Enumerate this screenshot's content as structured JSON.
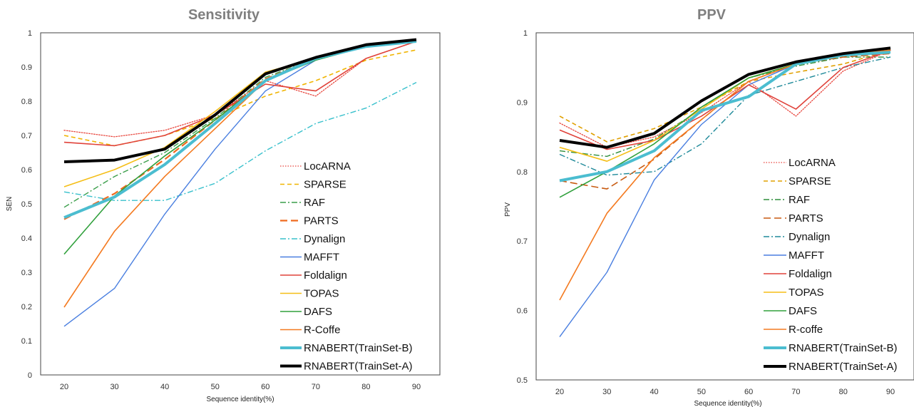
{
  "chart_data": [
    {
      "type": "line",
      "title": "Sensitivity",
      "xlabel": "Sequence identity(%)",
      "ylabel": "SEN",
      "x": [
        20,
        30,
        40,
        50,
        60,
        70,
        80,
        90
      ],
      "xticks": [
        "20",
        "30",
        "40",
        "50",
        "60",
        "70",
        "80",
        "90"
      ],
      "yticks": [
        "0",
        "0.1",
        "0.2",
        "0.3",
        "0.4",
        "0.5",
        "0.6",
        "0.7",
        "0.8",
        "0.9",
        "1"
      ],
      "ylim": [
        0,
        1
      ],
      "legend_position": "right",
      "series": [
        {
          "name": "LocARNA",
          "color": "#e8453c",
          "dash": "dotted",
          "width": 1.3,
          "values": [
            0.715,
            0.696,
            0.715,
            0.76,
            0.86,
            0.815,
            0.925,
            0.975
          ]
        },
        {
          "name": "SPARSE",
          "color": "#f0b400",
          "dash": "dashed",
          "width": 1.6,
          "values": [
            0.7,
            0.67,
            0.7,
            0.75,
            0.815,
            0.86,
            0.92,
            0.95
          ]
        },
        {
          "name": "RAF",
          "color": "#3a9e4a",
          "dash": "dashdot",
          "width": 1.4,
          "values": [
            0.49,
            0.58,
            0.65,
            0.75,
            0.87,
            0.925,
            0.96,
            0.975
          ]
        },
        {
          "name": "PARTS",
          "color": "#ef6a1f",
          "dash": "longdash",
          "width": 2.2,
          "values": [
            0.455,
            0.53,
            0.63,
            0.745,
            0.865,
            0.925,
            0.96,
            0.975
          ]
        },
        {
          "name": "Dynalign",
          "color": "#38c0cc",
          "dash": "dashdot",
          "width": 1.4,
          "values": [
            0.535,
            0.51,
            0.51,
            0.56,
            0.655,
            0.735,
            0.78,
            0.855
          ]
        },
        {
          "name": "MAFFT",
          "color": "#4a7fe0",
          "dash": "solid",
          "width": 1.4,
          "values": [
            0.142,
            0.253,
            0.47,
            0.66,
            0.83,
            0.92,
            0.96,
            0.975
          ]
        },
        {
          "name": "Foldalign",
          "color": "#e0423a",
          "dash": "solid",
          "width": 1.6,
          "values": [
            0.68,
            0.67,
            0.7,
            0.76,
            0.85,
            0.83,
            0.925,
            0.975
          ]
        },
        {
          "name": "TOPAS",
          "color": "#f5be16",
          "dash": "solid",
          "width": 1.6,
          "values": [
            0.55,
            0.6,
            0.665,
            0.77,
            0.885,
            0.925,
            0.96,
            0.975
          ]
        },
        {
          "name": "DAFS",
          "color": "#30a03c",
          "dash": "solid",
          "width": 1.6,
          "values": [
            0.353,
            0.523,
            0.64,
            0.745,
            0.86,
            0.92,
            0.96,
            0.975
          ]
        },
        {
          "name": "R-Coffe",
          "color": "#f47a20",
          "dash": "solid",
          "width": 1.6,
          "values": [
            0.198,
            0.42,
            0.58,
            0.72,
            0.86,
            0.925,
            0.96,
            0.975
          ]
        },
        {
          "name": "RNABERT(TrainSet-B)",
          "color": "#4bbdd0",
          "dash": "solid",
          "width": 4,
          "values": [
            0.46,
            0.52,
            0.615,
            0.735,
            0.86,
            0.925,
            0.96,
            0.975
          ]
        },
        {
          "name": "RNABERT(TrainSet-A)",
          "color": "#000000",
          "dash": "solid",
          "width": 4,
          "values": [
            0.623,
            0.628,
            0.66,
            0.76,
            0.88,
            0.928,
            0.965,
            0.98
          ]
        }
      ]
    },
    {
      "type": "line",
      "title": "PPV",
      "xlabel": "Sequence identity(%)",
      "ylabel": "PPV",
      "x": [
        20,
        30,
        40,
        50,
        60,
        70,
        80,
        90
      ],
      "xticks": [
        "20",
        "30",
        "40",
        "50",
        "60",
        "70",
        "80",
        "90"
      ],
      "yticks": [
        "0.5",
        "0.6",
        "0.7",
        "0.8",
        "0.9",
        "1"
      ],
      "ylim": [
        0.5,
        1
      ],
      "legend_position": "right",
      "series": [
        {
          "name": "LocARNA",
          "color": "#e8453c",
          "dash": "dotted",
          "width": 1.3,
          "values": [
            0.87,
            0.835,
            0.85,
            0.885,
            0.93,
            0.88,
            0.945,
            0.975
          ]
        },
        {
          "name": "SPARSE",
          "color": "#e0a000",
          "dash": "dashed",
          "width": 1.6,
          "values": [
            0.88,
            0.843,
            0.862,
            0.893,
            0.93,
            0.943,
            0.955,
            0.975
          ]
        },
        {
          "name": "RAF",
          "color": "#2f8e3c",
          "dash": "dashdot",
          "width": 1.4,
          "values": [
            0.83,
            0.822,
            0.847,
            0.89,
            0.935,
            0.952,
            0.965,
            0.965
          ]
        },
        {
          "name": "PARTS",
          "color": "#c85a10",
          "dash": "longdash",
          "width": 1.6,
          "values": [
            0.787,
            0.775,
            0.818,
            0.875,
            0.93,
            0.955,
            0.965,
            0.97
          ]
        },
        {
          "name": "Dynalign",
          "color": "#1f8a9a",
          "dash": "dashdot",
          "width": 1.4,
          "values": [
            0.825,
            0.795,
            0.8,
            0.84,
            0.91,
            0.93,
            0.95,
            0.965
          ]
        },
        {
          "name": "MAFFT",
          "color": "#4a7fe0",
          "dash": "solid",
          "width": 1.4,
          "values": [
            0.562,
            0.655,
            0.788,
            0.868,
            0.925,
            0.955,
            0.968,
            0.975
          ]
        },
        {
          "name": "Foldalign",
          "color": "#e0423a",
          "dash": "solid",
          "width": 1.6,
          "values": [
            0.86,
            0.832,
            0.845,
            0.88,
            0.925,
            0.89,
            0.95,
            0.975
          ]
        },
        {
          "name": "TOPAS",
          "color": "#f5be16",
          "dash": "solid",
          "width": 1.6,
          "values": [
            0.835,
            0.815,
            0.845,
            0.89,
            0.935,
            0.955,
            0.968,
            0.975
          ]
        },
        {
          "name": "DAFS",
          "color": "#30a03c",
          "dash": "solid",
          "width": 1.6,
          "values": [
            0.763,
            0.8,
            0.84,
            0.893,
            0.935,
            0.955,
            0.968,
            0.975
          ]
        },
        {
          "name": "R-coffe",
          "color": "#f47a20",
          "dash": "solid",
          "width": 1.6,
          "values": [
            0.615,
            0.74,
            0.82,
            0.875,
            0.93,
            0.955,
            0.968,
            0.975
          ]
        },
        {
          "name": "RNABERT(TrainSet-B)",
          "color": "#4bbdd0",
          "dash": "solid",
          "width": 4,
          "values": [
            0.787,
            0.8,
            0.83,
            0.888,
            0.908,
            0.955,
            0.968,
            0.972
          ]
        },
        {
          "name": "RNABERT(TrainSet-A)",
          "color": "#000000",
          "dash": "solid",
          "width": 4,
          "values": [
            0.845,
            0.835,
            0.855,
            0.902,
            0.94,
            0.958,
            0.97,
            0.978
          ]
        }
      ]
    }
  ]
}
